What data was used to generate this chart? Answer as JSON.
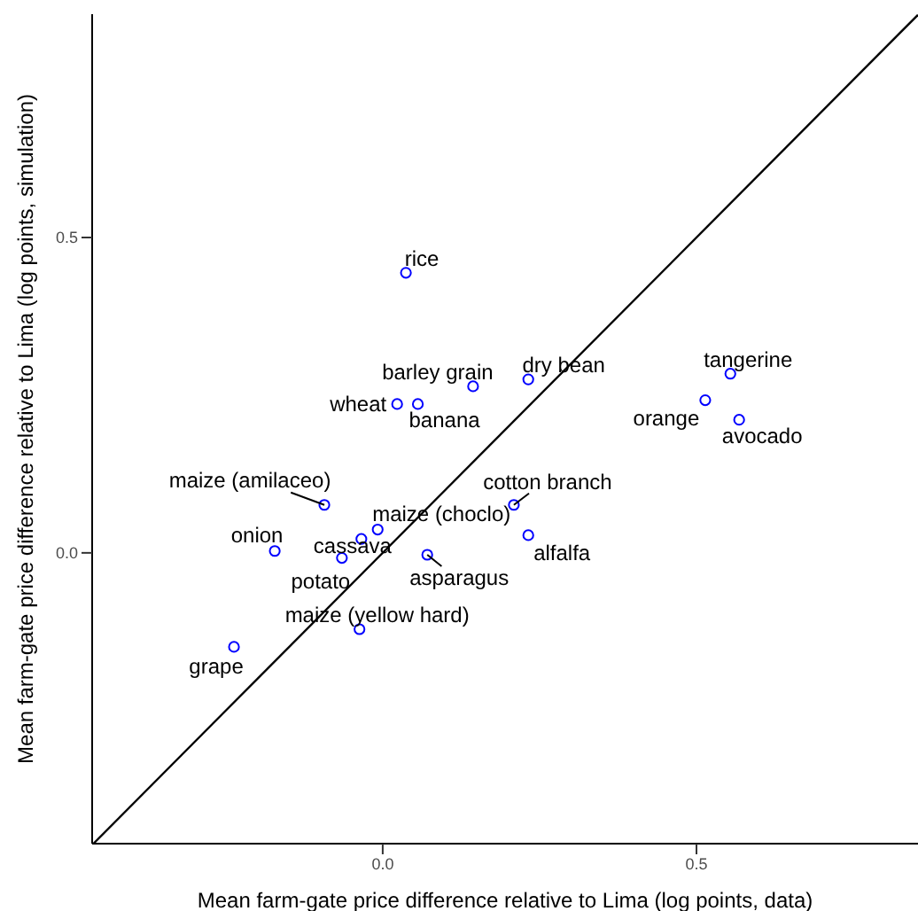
{
  "chart_data": {
    "type": "scatter",
    "xlabel": "Mean farm-gate price difference relative to Lima (log points, data)",
    "ylabel": "Mean farm-gate price difference relative to Lima (log points, simulation)",
    "xlim": [
      -0.463,
      0.853
    ],
    "ylim": [
      -0.461,
      0.854
    ],
    "xticks": [
      {
        "value": 0,
        "label": "0.0"
      },
      {
        "value": 0.5,
        "label": "0.5"
      }
    ],
    "yticks": [
      {
        "value": 0,
        "label": "0.0"
      },
      {
        "value": 0.5,
        "label": "0.5"
      }
    ],
    "grid": false,
    "legend": false,
    "marker": "circle",
    "series": [
      {
        "type": "scatter",
        "color": "#0000ff",
        "x": [
          0.037,
          0.144,
          0.232,
          0.554,
          0.514,
          0.568,
          0.023,
          0.056,
          -0.093,
          0.209,
          0.232,
          -0.008,
          -0.034,
          -0.172,
          -0.065,
          0.071,
          -0.037,
          -0.237
        ],
        "values": [
          0.444,
          0.264,
          0.275,
          0.284,
          0.242,
          0.211,
          0.236,
          0.236,
          0.076,
          0.076,
          0.028,
          0.037,
          0.022,
          0.003,
          -0.008,
          -0.003,
          -0.121,
          -0.149
        ]
      },
      {
        "type": "line",
        "color": "#000000",
        "marker": "none",
        "x": [
          -0.461,
          0.853
        ],
        "values": [
          -0.461,
          0.853
        ]
      }
    ],
    "annotations": [
      {
        "text": "rice",
        "x": 0.037,
        "y": 0.444
      },
      {
        "text": "barley grain",
        "x": 0.144,
        "y": 0.264
      },
      {
        "text": "dry bean",
        "x": 0.232,
        "y": 0.275
      },
      {
        "text": "tangerine",
        "x": 0.554,
        "y": 0.284
      },
      {
        "text": "orange",
        "x": 0.514,
        "y": 0.242
      },
      {
        "text": "avocado",
        "x": 0.568,
        "y": 0.211
      },
      {
        "text": "wheat",
        "x": 0.023,
        "y": 0.236
      },
      {
        "text": "banana",
        "x": 0.056,
        "y": 0.236
      },
      {
        "text": "maize (amilaceo)",
        "x": -0.093,
        "y": 0.076
      },
      {
        "text": "cotton branch",
        "x": 0.209,
        "y": 0.076
      },
      {
        "text": "alfalfa",
        "x": 0.232,
        "y": 0.028
      },
      {
        "text": "maize (choclo)",
        "x": -0.008,
        "y": 0.037
      },
      {
        "text": "cassava",
        "x": -0.034,
        "y": 0.022
      },
      {
        "text": "onion",
        "x": -0.172,
        "y": 0.003
      },
      {
        "text": "potato",
        "x": -0.065,
        "y": -0.008
      },
      {
        "text": "asparagus",
        "x": 0.071,
        "y": -0.003
      },
      {
        "text": "maize (yellow hard)",
        "x": -0.037,
        "y": -0.121
      },
      {
        "text": "grape",
        "x": -0.237,
        "y": -0.149
      }
    ]
  }
}
